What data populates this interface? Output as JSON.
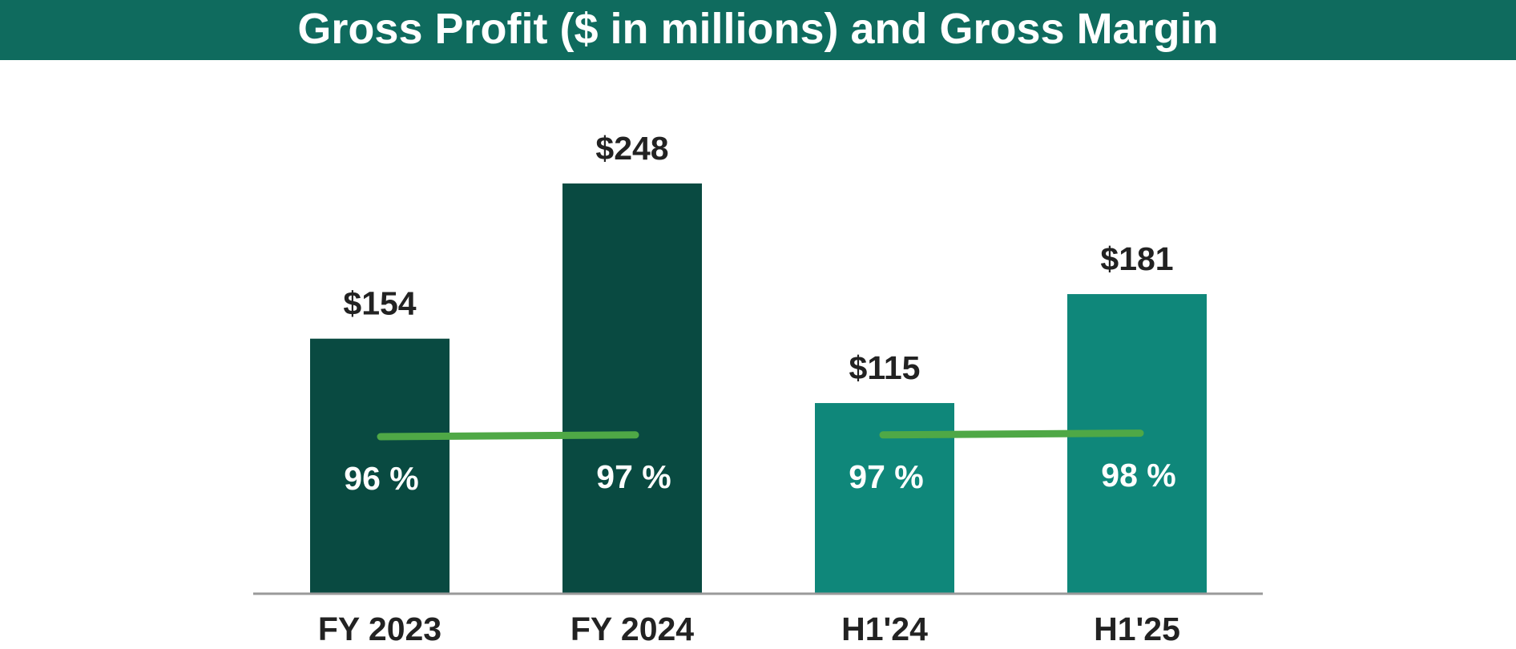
{
  "colors": {
    "header_bg": "#0f6b5e",
    "header_text": "#ffffff",
    "bar_fy": "#094a41",
    "bar_h1": "#0f877a",
    "margin_line": "#4fa846",
    "value_label": "#222222",
    "margin_label": "#ffffff",
    "axis": "#9a9a9a"
  },
  "chart_data": {
    "type": "bar",
    "title": "Gross Profit ($ in millions) and Gross Margin",
    "categories": [
      "FY 2023",
      "FY 2024",
      "H1'24",
      "H1'25"
    ],
    "series": [
      {
        "name": "Gross Profit",
        "values": [
          154,
          248,
          115,
          181
        ],
        "labels": [
          "$154",
          "$248",
          "$115",
          "$181"
        ]
      },
      {
        "name": "Gross Margin",
        "type": "line",
        "values": [
          96,
          97,
          97,
          98
        ],
        "labels": [
          "96 %",
          "97 %",
          "97 %",
          "98 %"
        ],
        "line_groups": [
          [
            0,
            1
          ],
          [
            2,
            3
          ]
        ]
      }
    ],
    "ylim": [
      0,
      248
    ],
    "xlabel": "",
    "ylabel": "",
    "grid": false,
    "legend": "none"
  }
}
